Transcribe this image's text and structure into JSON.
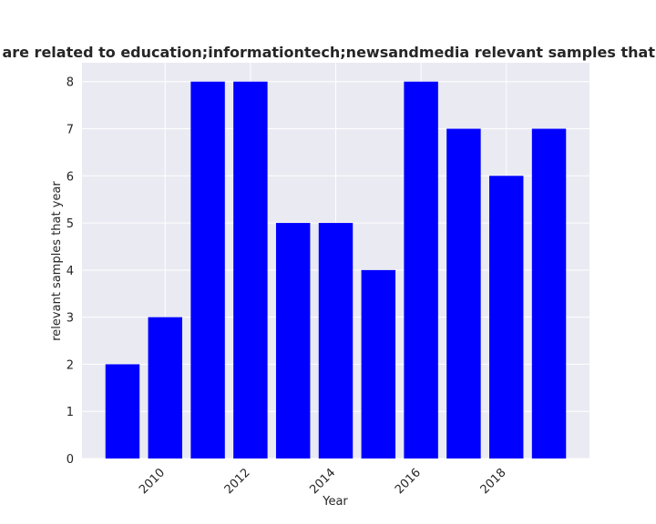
{
  "chart_data": {
    "type": "bar",
    "title": "Samples that are related to education;informationtech;newsandmedia relevant samples that year in privacy",
    "xlabel": "Year",
    "ylabel": "relevant samples that year",
    "x": [
      2009,
      2010,
      2011,
      2012,
      2013,
      2014,
      2015,
      2016,
      2017,
      2018,
      2019
    ],
    "values": [
      2,
      3,
      8,
      8,
      5,
      5,
      4,
      8,
      7,
      6,
      7
    ],
    "xticks": [
      "2010",
      "2012",
      "2014",
      "2016",
      "2018"
    ],
    "yticks": [
      "0",
      "1",
      "2",
      "3",
      "4",
      "5",
      "6",
      "7",
      "8"
    ],
    "ylim": [
      0,
      8.4
    ],
    "bar_color": "#0000ff",
    "grid": true,
    "background": "#eaeaf2"
  }
}
